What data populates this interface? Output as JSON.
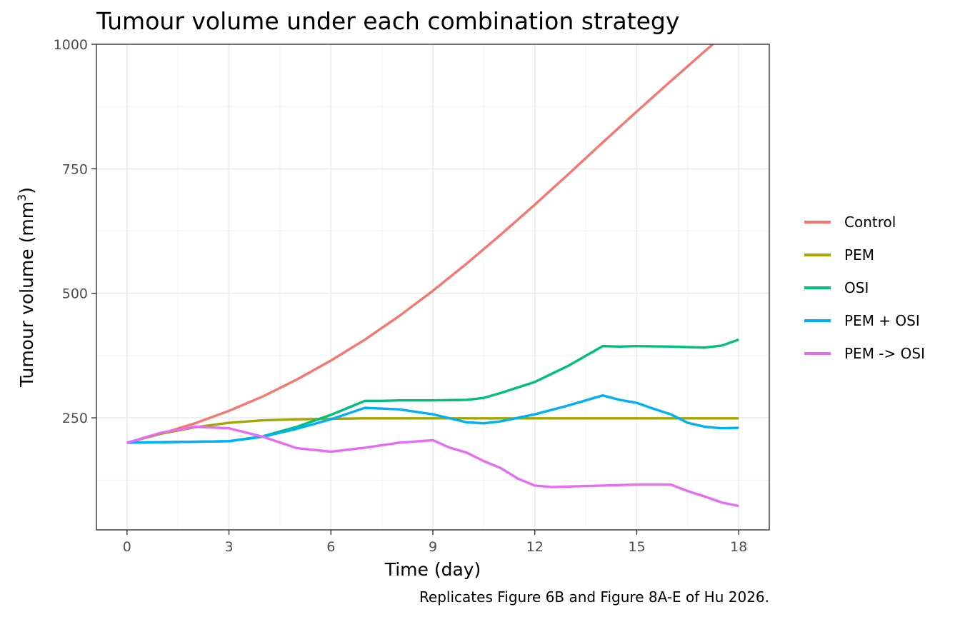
{
  "chart_data": {
    "type": "line",
    "title": "Tumour volume under each combination strategy",
    "xlabel": "Time (day)",
    "ylabel": "Tumour volume (mm",
    "ylabel_superscript": "3",
    "ylabel_suffix": ")",
    "caption": "Replicates Figure 6B and Figure 8A-E of Hu 2026.",
    "xlim": [
      -0.9,
      18.9
    ],
    "ylim": [
      25,
      1000
    ],
    "x_ticks": [
      0,
      3,
      6,
      9,
      12,
      15,
      18
    ],
    "x_tick_labels": [
      "0",
      "3",
      "6",
      "9",
      "12",
      "15",
      "18"
    ],
    "y_ticks": [
      250,
      500,
      750,
      1000
    ],
    "y_tick_labels": [
      "250",
      "500",
      "750",
      "1000"
    ],
    "grid": true,
    "legend_position": "right",
    "series": [
      {
        "name": "Control",
        "color": "#F8766D",
        "points": [
          [
            0,
            200
          ],
          [
            1,
            218
          ],
          [
            2,
            239
          ],
          [
            3,
            264
          ],
          [
            4,
            293
          ],
          [
            5,
            327
          ],
          [
            6,
            365
          ],
          [
            7,
            407
          ],
          [
            8,
            454
          ],
          [
            9,
            505
          ],
          [
            10,
            560
          ],
          [
            11,
            618
          ],
          [
            12,
            678
          ],
          [
            13,
            740
          ],
          [
            14,
            803
          ],
          [
            15,
            865
          ],
          [
            16,
            926
          ],
          [
            17,
            986
          ],
          [
            18,
            1045
          ]
        ]
      },
      {
        "name": "PEM",
        "color": "#A3A500",
        "points": [
          [
            0,
            200
          ],
          [
            1,
            218
          ],
          [
            2,
            231
          ],
          [
            3,
            240
          ],
          [
            4,
            245
          ],
          [
            5,
            247
          ],
          [
            6,
            248
          ],
          [
            7,
            249
          ],
          [
            8,
            249
          ],
          [
            9,
            249
          ],
          [
            10,
            249
          ],
          [
            11,
            249
          ],
          [
            12,
            249
          ],
          [
            13,
            249
          ],
          [
            14,
            249
          ],
          [
            15,
            249
          ],
          [
            16,
            249
          ],
          [
            17,
            249
          ],
          [
            18,
            249
          ]
        ]
      },
      {
        "name": "OSI",
        "color": "#00BF7D",
        "points": [
          [
            0,
            200
          ],
          [
            1,
            201
          ],
          [
            2,
            202
          ],
          [
            3,
            203
          ],
          [
            4,
            213
          ],
          [
            5,
            232
          ],
          [
            6,
            256
          ],
          [
            6.5,
            270
          ],
          [
            7,
            284
          ],
          [
            7.5,
            284
          ],
          [
            8,
            285
          ],
          [
            9,
            285
          ],
          [
            10,
            286
          ],
          [
            10.5,
            290
          ],
          [
            11,
            300
          ],
          [
            12,
            322
          ],
          [
            13,
            355
          ],
          [
            14,
            394
          ],
          [
            14.5,
            393
          ],
          [
            15,
            394
          ],
          [
            16,
            393
          ],
          [
            16.5,
            392
          ],
          [
            17,
            391
          ],
          [
            17.5,
            395
          ],
          [
            18,
            407
          ]
        ]
      },
      {
        "name": "PEM + OSI",
        "color": "#00B0F6",
        "points": [
          [
            0,
            200
          ],
          [
            1,
            201
          ],
          [
            2,
            202
          ],
          [
            3,
            203
          ],
          [
            4,
            212
          ],
          [
            5,
            228
          ],
          [
            6,
            247
          ],
          [
            7,
            270
          ],
          [
            8,
            267
          ],
          [
            9,
            257
          ],
          [
            10,
            241
          ],
          [
            10.5,
            239
          ],
          [
            11,
            243
          ],
          [
            12,
            257
          ],
          [
            13,
            275
          ],
          [
            14,
            295
          ],
          [
            14.5,
            286
          ],
          [
            15,
            280
          ],
          [
            15.5,
            268
          ],
          [
            16,
            257
          ],
          [
            16.5,
            240
          ],
          [
            17,
            232
          ],
          [
            17.5,
            229
          ],
          [
            18,
            230
          ]
        ]
      },
      {
        "name": "PEM -> OSI",
        "color": "#E76BF3",
        "points": [
          [
            0,
            200
          ],
          [
            1,
            220
          ],
          [
            2,
            232
          ],
          [
            3,
            229
          ],
          [
            4,
            212
          ],
          [
            5,
            189
          ],
          [
            6,
            182
          ],
          [
            7,
            190
          ],
          [
            8,
            200
          ],
          [
            9,
            205
          ],
          [
            9.5,
            190
          ],
          [
            10,
            180
          ],
          [
            10.5,
            163
          ],
          [
            11,
            149
          ],
          [
            11.5,
            128
          ],
          [
            12,
            114
          ],
          [
            12.5,
            111
          ],
          [
            13,
            112
          ],
          [
            14,
            114
          ],
          [
            15,
            116
          ],
          [
            16,
            116
          ],
          [
            16.5,
            103
          ],
          [
            17,
            92
          ],
          [
            17.5,
            80
          ],
          [
            18,
            73
          ]
        ]
      }
    ]
  }
}
